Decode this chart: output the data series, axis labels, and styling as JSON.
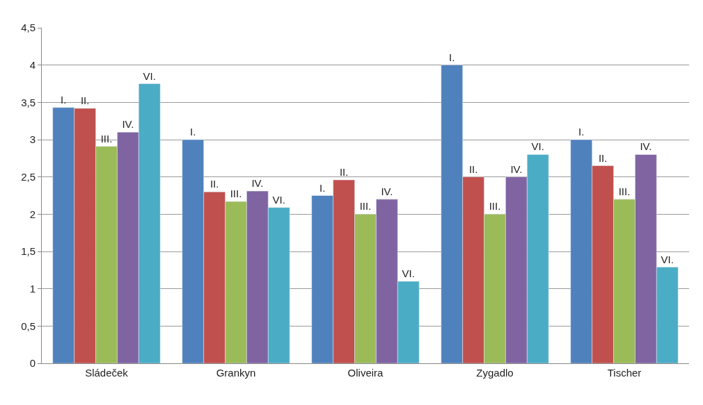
{
  "chart_data": {
    "type": "bar",
    "categories": [
      "Sládeček",
      "Grankyn",
      "Oliveira",
      "Zygadlo",
      "Tischer"
    ],
    "series": [
      {
        "name": "I.",
        "color": "#4f81bd",
        "values": [
          3.43,
          3.0,
          2.25,
          4.0,
          3.0
        ]
      },
      {
        "name": "II.",
        "color": "#c0504d",
        "values": [
          3.42,
          2.3,
          2.46,
          2.5,
          2.65
        ]
      },
      {
        "name": "III.",
        "color": "#9bbb59",
        "values": [
          2.91,
          2.17,
          2.0,
          2.0,
          2.2
        ]
      },
      {
        "name": "IV.",
        "color": "#8064a2",
        "values": [
          3.1,
          2.31,
          2.2,
          2.5,
          2.8
        ]
      },
      {
        "name": "VI.",
        "color": "#4bacc6",
        "values": [
          3.75,
          2.09,
          1.1,
          2.8,
          1.29
        ]
      }
    ],
    "ylim": [
      0,
      4.5
    ],
    "yticks": [
      0,
      {
        "value": 0.5,
        "label": "0,5"
      },
      1,
      {
        "value": 1.5,
        "label": "1,5"
      },
      2,
      {
        "value": 2.5,
        "label": "2,5"
      },
      3,
      {
        "value": 3.5,
        "label": "3,5"
      },
      4,
      {
        "value": 4.5,
        "label": "4,5"
      }
    ],
    "grid": "y",
    "legend": false
  }
}
